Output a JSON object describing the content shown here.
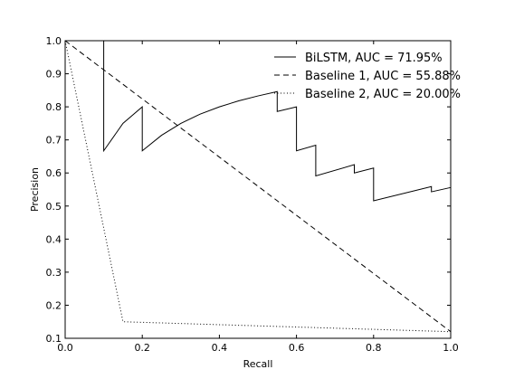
{
  "chart_data": {
    "type": "line",
    "title": "",
    "xlabel": "Recall",
    "ylabel": "Precision",
    "xlim": [
      0.0,
      1.0
    ],
    "ylim": [
      0.1,
      1.0
    ],
    "grid": false,
    "legend_position": "top-right",
    "xticks": [
      0.0,
      0.2,
      0.4,
      0.6,
      0.8,
      1.0
    ],
    "xtick_labels": [
      "0.0",
      "0.2",
      "0.4",
      "0.6",
      "0.8",
      "1.0"
    ],
    "yticks": [
      0.1,
      0.2,
      0.3,
      0.4,
      0.5,
      0.6,
      0.7,
      0.8,
      0.9,
      1.0
    ],
    "ytick_labels": [
      "0.1",
      "0.2",
      "0.3",
      "0.4",
      "0.5",
      "0.6",
      "0.7",
      "0.8",
      "0.9",
      "1.0"
    ],
    "series": [
      {
        "name": "BiLSTM, AUC = 71.95%",
        "style": "solid",
        "color": "#000000",
        "x": [
          0.0,
          0.1,
          0.1,
          0.15,
          0.2,
          0.2,
          0.25,
          0.3,
          0.35,
          0.4,
          0.45,
          0.5,
          0.55,
          0.55,
          0.6,
          0.6,
          0.65,
          0.65,
          0.75,
          0.75,
          0.8,
          0.8,
          0.95,
          0.95,
          1.0
        ],
        "y": [
          1.0,
          1.0,
          0.667,
          0.75,
          0.8,
          0.667,
          0.714,
          0.75,
          0.778,
          0.8,
          0.818,
          0.833,
          0.846,
          0.786,
          0.8,
          0.667,
          0.684,
          0.591,
          0.625,
          0.6,
          0.615,
          0.516,
          0.559,
          0.543,
          0.556
        ]
      },
      {
        "name": "Baseline 1, AUC = 55.88%",
        "style": "dashed",
        "color": "#000000",
        "x": [
          0.0,
          1.0
        ],
        "y": [
          1.0,
          0.12
        ]
      },
      {
        "name": "Baseline 2, AUC = 20.00%",
        "style": "dotted",
        "color": "#000000",
        "x": [
          0.0,
          0.15,
          1.0
        ],
        "y": [
          1.0,
          0.15,
          0.12
        ]
      }
    ]
  }
}
